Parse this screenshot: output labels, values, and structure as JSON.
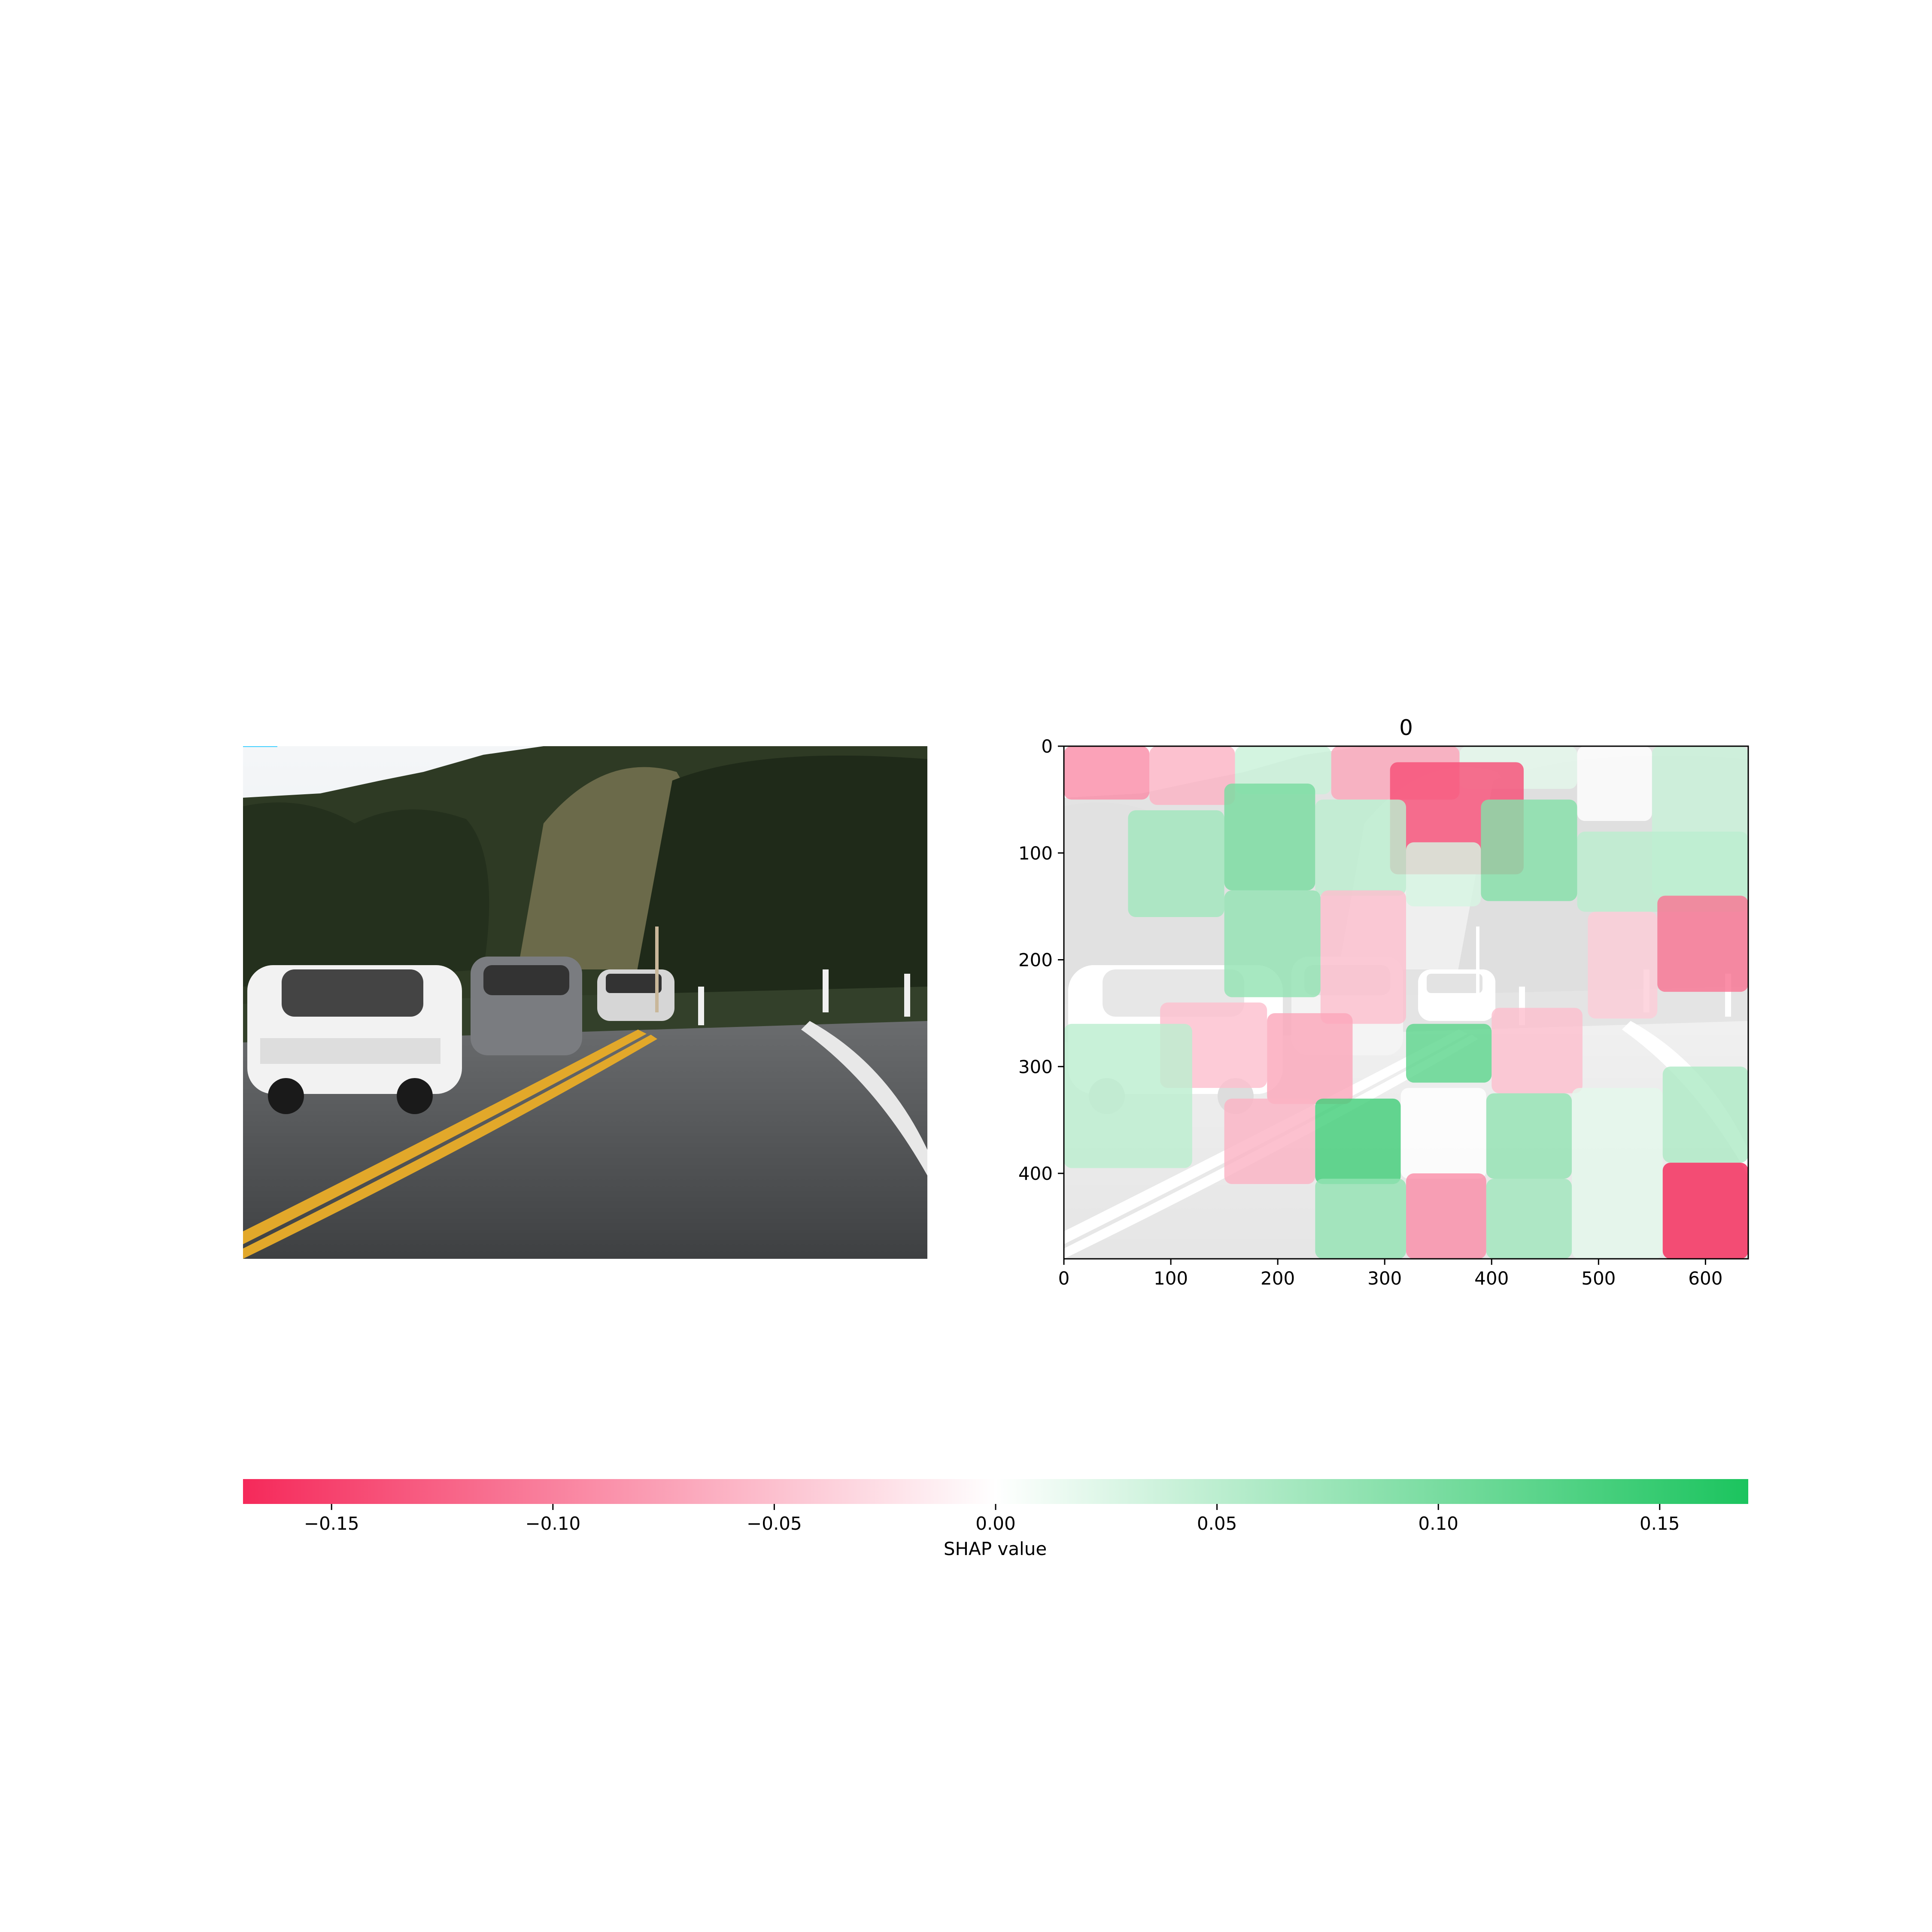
{
  "chart_data": [
    {
      "type": "image",
      "description_role": "original-photo"
    },
    {
      "type": "heatmap",
      "title": "0",
      "xlabel": "",
      "ylabel": "",
      "xlim": [
        0,
        640
      ],
      "ylim": [
        480,
        0
      ],
      "x_ticks": [
        0,
        100,
        200,
        300,
        400,
        500,
        600
      ],
      "y_ticks": [
        0,
        100,
        200,
        300,
        400
      ],
      "superpixels": [
        {
          "x0": 0,
          "x1": 80,
          "y0": 0,
          "y1": 50,
          "value": -0.09
        },
        {
          "x0": 80,
          "x1": 160,
          "y0": 0,
          "y1": 55,
          "value": -0.06
        },
        {
          "x0": 160,
          "x1": 250,
          "y0": 0,
          "y1": 45,
          "value": 0.04
        },
        {
          "x0": 250,
          "x1": 370,
          "y0": 0,
          "y1": 50,
          "value": -0.07
        },
        {
          "x0": 370,
          "x1": 480,
          "y0": 0,
          "y1": 40,
          "value": 0.02
        },
        {
          "x0": 480,
          "x1": 550,
          "y0": 0,
          "y1": 70,
          "value": 0.0
        },
        {
          "x0": 550,
          "x1": 640,
          "y0": 0,
          "y1": 140,
          "value": 0.04
        },
        {
          "x0": 305,
          "x1": 430,
          "y0": 15,
          "y1": 120,
          "value": -0.14
        },
        {
          "x0": 60,
          "x1": 150,
          "y0": 60,
          "y1": 160,
          "value": 0.07
        },
        {
          "x0": 150,
          "x1": 235,
          "y0": 35,
          "y1": 135,
          "value": 0.1
        },
        {
          "x0": 235,
          "x1": 320,
          "y0": 50,
          "y1": 140,
          "value": 0.05
        },
        {
          "x0": 320,
          "x1": 390,
          "y0": 90,
          "y1": 150,
          "value": 0.03
        },
        {
          "x0": 390,
          "x1": 480,
          "y0": 50,
          "y1": 145,
          "value": 0.09
        },
        {
          "x0": 480,
          "x1": 640,
          "y0": 80,
          "y1": 155,
          "value": 0.05
        },
        {
          "x0": 150,
          "x1": 240,
          "y0": 135,
          "y1": 235,
          "value": 0.08
        },
        {
          "x0": 240,
          "x1": 320,
          "y0": 135,
          "y1": 260,
          "value": -0.05
        },
        {
          "x0": 490,
          "x1": 555,
          "y0": 155,
          "y1": 255,
          "value": -0.04
        },
        {
          "x0": 555,
          "x1": 640,
          "y0": 140,
          "y1": 230,
          "value": -0.11
        },
        {
          "x0": 90,
          "x1": 190,
          "y0": 240,
          "y1": 320,
          "value": -0.05
        },
        {
          "x0": 190,
          "x1": 270,
          "y0": 250,
          "y1": 335,
          "value": -0.07
        },
        {
          "x0": 320,
          "x1": 400,
          "y0": 260,
          "y1": 315,
          "value": 0.12
        },
        {
          "x0": 400,
          "x1": 485,
          "y0": 245,
          "y1": 325,
          "value": -0.05
        },
        {
          "x0": 0,
          "x1": 120,
          "y0": 260,
          "y1": 395,
          "value": 0.05
        },
        {
          "x0": 150,
          "x1": 235,
          "y0": 330,
          "y1": 410,
          "value": -0.06
        },
        {
          "x0": 235,
          "x1": 315,
          "y0": 330,
          "y1": 410,
          "value": 0.14
        },
        {
          "x0": 315,
          "x1": 395,
          "y0": 320,
          "y1": 405,
          "value": 0.0
        },
        {
          "x0": 395,
          "x1": 475,
          "y0": 325,
          "y1": 405,
          "value": 0.08
        },
        {
          "x0": 475,
          "x1": 560,
          "y0": 320,
          "y1": 480,
          "value": 0.02
        },
        {
          "x0": 560,
          "x1": 640,
          "y0": 300,
          "y1": 390,
          "value": 0.06
        },
        {
          "x0": 235,
          "x1": 320,
          "y0": 405,
          "y1": 480,
          "value": 0.08
        },
        {
          "x0": 320,
          "x1": 395,
          "y0": 400,
          "y1": 480,
          "value": -0.09
        },
        {
          "x0": 395,
          "x1": 475,
          "y0": 405,
          "y1": 480,
          "value": 0.07
        },
        {
          "x0": 560,
          "x1": 640,
          "y0": 390,
          "y1": 480,
          "value": -0.17
        }
      ]
    },
    {
      "type": "colorbar",
      "label": "SHAP value",
      "range": [
        -0.17,
        0.17
      ],
      "ticks": [
        -0.15,
        -0.1,
        -0.05,
        0.0,
        0.05,
        0.1,
        0.15
      ],
      "tick_labels": [
        "−0.15",
        "−0.10",
        "−0.05",
        "0.00",
        "0.05",
        "0.10",
        "0.15"
      ],
      "neg_color": "#f5295a",
      "mid_color": "#ffffff",
      "pos_color": "#1bc45e"
    }
  ]
}
